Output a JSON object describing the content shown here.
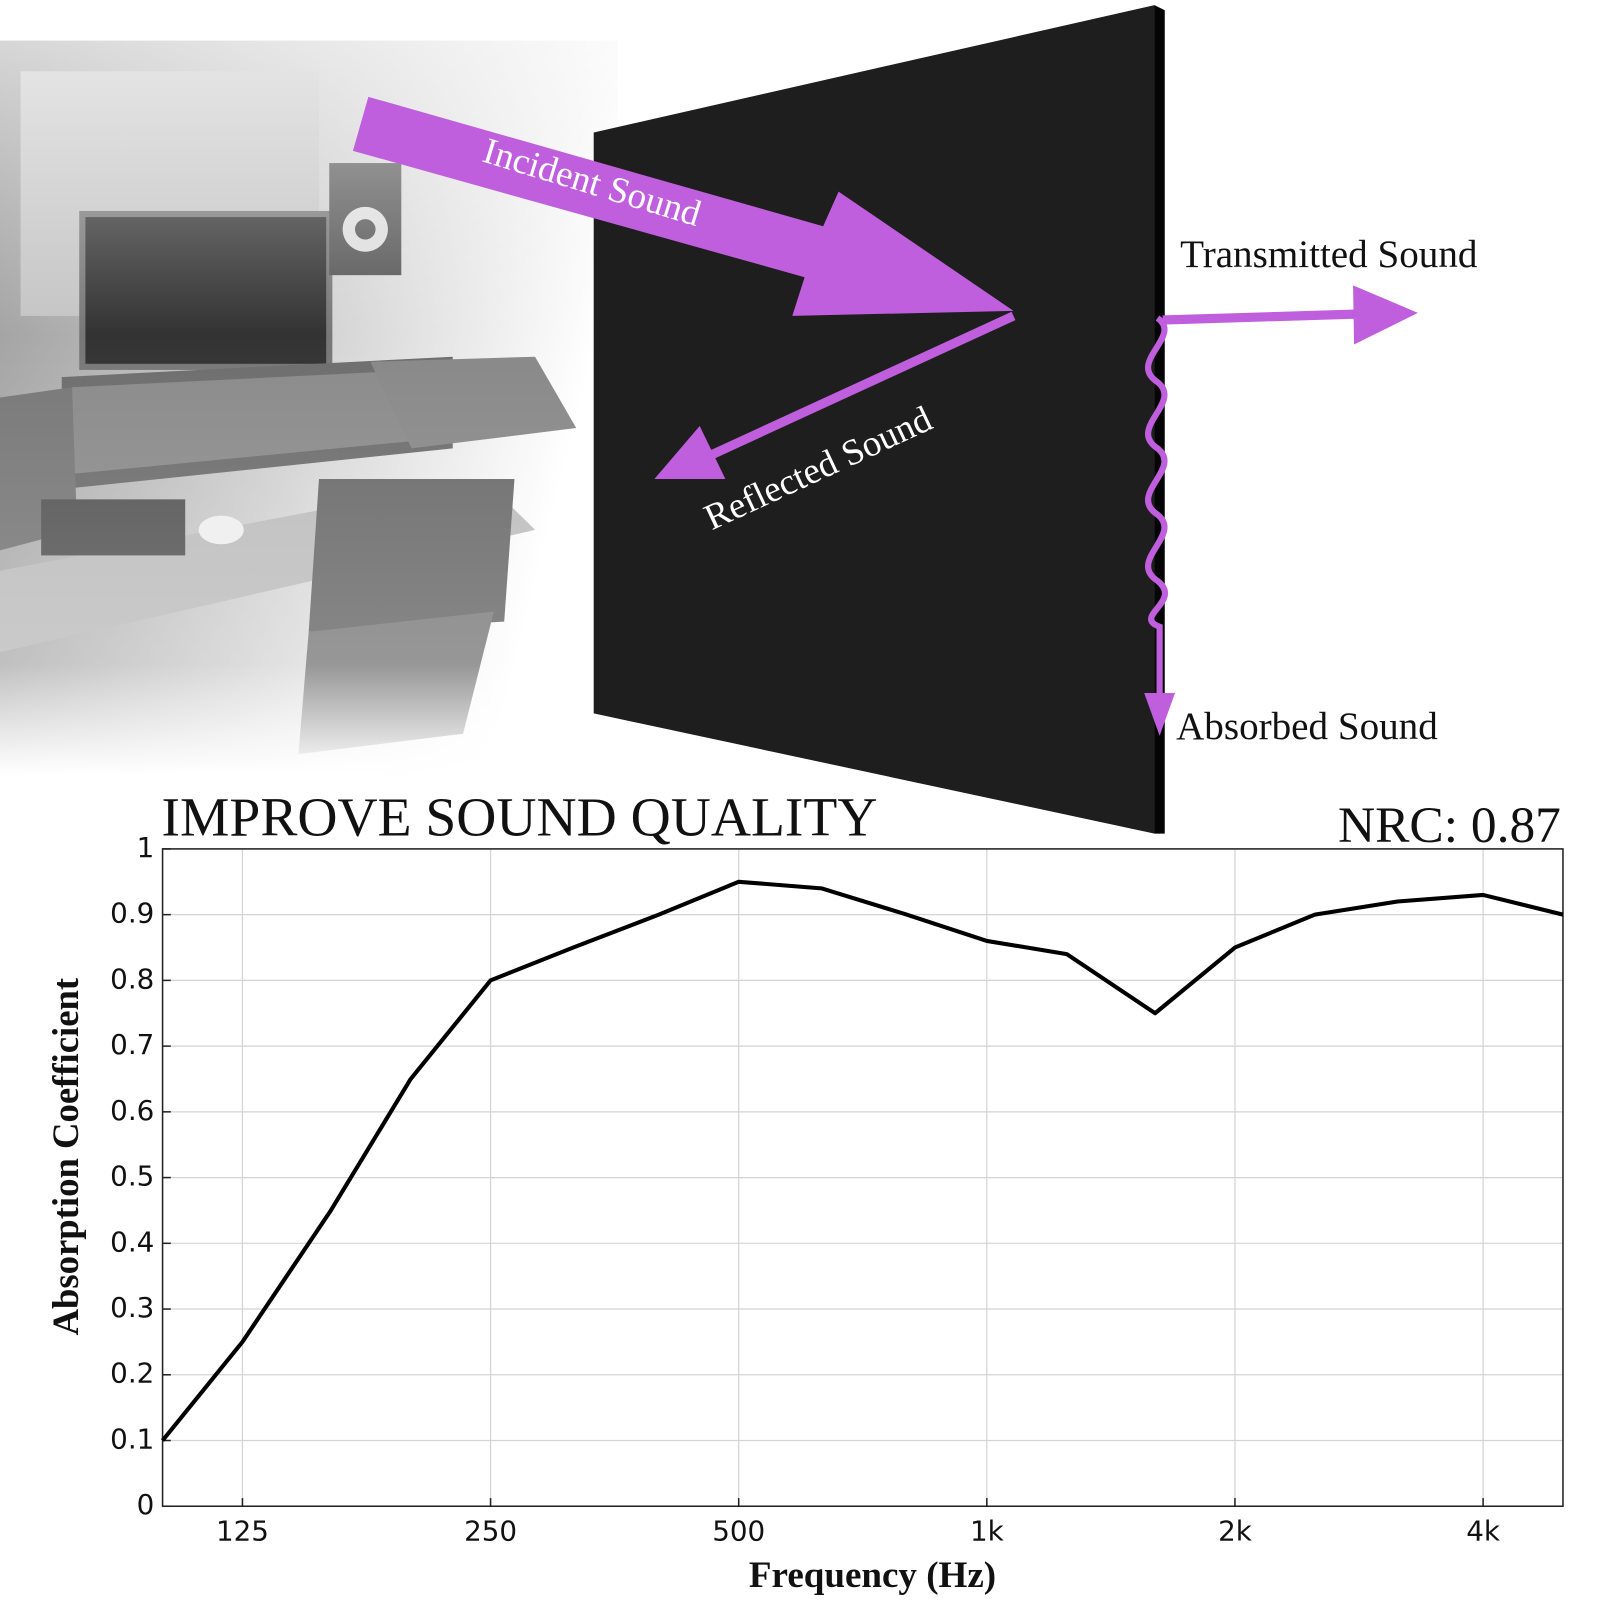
{
  "diagram": {
    "incident": "Incident Sound",
    "reflected": "Reflected Sound",
    "transmitted": "Transmitted Sound",
    "absorbed": "Absorbed Sound"
  },
  "chart_data": {
    "type": "line",
    "title": "IMPROVE SOUND QUALITY",
    "annotation": "NRC: 0.87",
    "x_label": "Frequency (Hz)",
    "y_label": "Absorption Coefficient",
    "x": [
      100,
      125,
      160,
      200,
      250,
      315,
      400,
      500,
      630,
      800,
      1000,
      1250,
      1600,
      2000,
      2500,
      3150,
      4000,
      5000
    ],
    "values": [
      0.1,
      0.25,
      0.45,
      0.65,
      0.8,
      0.85,
      0.9,
      0.95,
      0.94,
      0.9,
      0.86,
      0.84,
      0.75,
      0.85,
      0.9,
      0.92,
      0.93,
      0.9
    ],
    "color": "#000000",
    "xscale": "log",
    "xlim": [
      100,
      5000
    ],
    "ylim": [
      0,
      1
    ],
    "xticks": [
      125,
      250,
      500,
      {
        "value": 1000,
        "label": "1k"
      },
      {
        "value": 2000,
        "label": "2k"
      },
      {
        "value": 4000,
        "label": "4k"
      }
    ],
    "yticks": [
      0,
      0.1,
      0.2,
      0.3,
      0.4,
      0.5,
      0.6,
      0.7,
      0.8,
      0.9,
      1
    ],
    "grid": true
  }
}
